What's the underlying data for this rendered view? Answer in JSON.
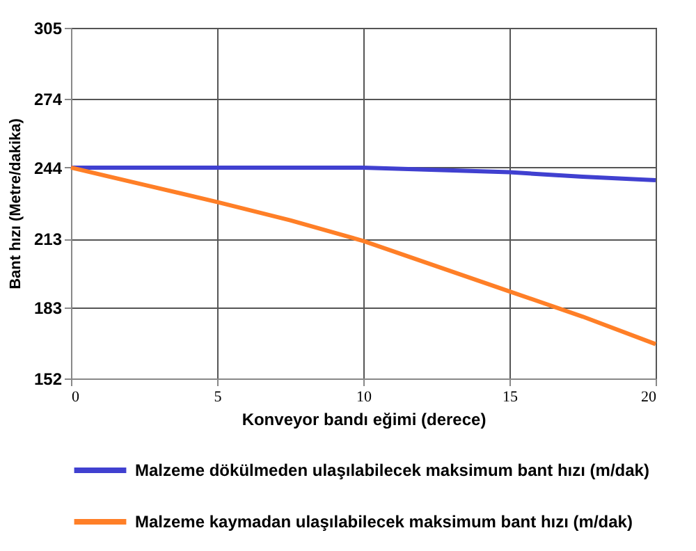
{
  "chart_data": {
    "type": "line",
    "xlabel": "Konveyor bandı eğimi (derece)",
    "ylabel": "Bant hızı (Metre/dakika)",
    "xlim": [
      0,
      20
    ],
    "xticks": [
      0,
      5,
      10,
      15,
      20
    ],
    "ylim": [
      152,
      305
    ],
    "yticks": [
      152,
      183,
      213,
      244,
      274,
      305
    ],
    "grid": true,
    "legend": "bottom",
    "x": [
      0,
      2.5,
      5,
      7.5,
      10,
      12.5,
      15,
      17.5,
      20
    ],
    "series": [
      {
        "name": "Malzeme dökülmeden ulaşılabilecek maksimum bant hızı (m/dak)",
        "color": "#4040d0",
        "values": [
          244,
          244,
          244,
          244,
          244,
          243,
          242,
          240,
          238.5
        ]
      },
      {
        "name": "Malzeme kaymadan ulaşılabilecek maksimum bant hızı (m/dak)",
        "color": "#ff7f27",
        "values": [
          244,
          236.5,
          229,
          221,
          212,
          201,
          190,
          179,
          167
        ]
      }
    ]
  }
}
